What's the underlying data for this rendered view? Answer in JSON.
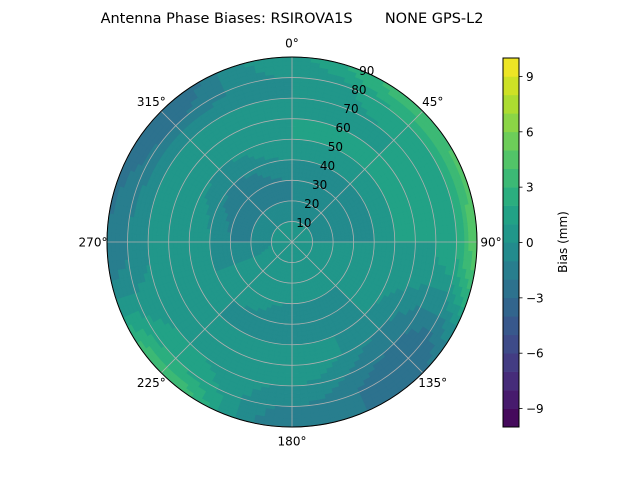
{
  "chart_data": {
    "type": "heatmap",
    "subtype": "polar-filled-contour",
    "title": "Antenna Phase Biases: RSIROVA1S       NONE GPS-L2",
    "azimuth_direction": "clockwise",
    "azimuth_zero": "top",
    "azimuth_ticks": [
      "0°",
      "45°",
      "90°",
      "135°",
      "180°",
      "225°",
      "270°",
      "315°"
    ],
    "radial_ticks": [
      "10",
      "20",
      "30",
      "40",
      "50",
      "60",
      "70",
      "80",
      "90"
    ],
    "radial_range": [
      0,
      90
    ],
    "grid": true,
    "azimuths": [
      0,
      45,
      90,
      135,
      180,
      225,
      270,
      315
    ],
    "radii": [
      0,
      10,
      20,
      30,
      40,
      50,
      60,
      70,
      80,
      90
    ],
    "values": [
      [
        0,
        0,
        -1,
        -1,
        0,
        1,
        1,
        0,
        0,
        1
      ],
      [
        0,
        0,
        -1,
        -1,
        0,
        1,
        1,
        1,
        2,
        4
      ],
      [
        0,
        0,
        0,
        0,
        0,
        1,
        1,
        1,
        2,
        5
      ],
      [
        0,
        0,
        0,
        0,
        0,
        0,
        -1,
        -2,
        -3,
        -2
      ],
      [
        0,
        1,
        0,
        0,
        -1,
        0,
        1,
        0,
        -1,
        -2
      ],
      [
        0,
        1,
        1,
        1,
        0,
        0,
        1,
        1,
        2,
        4
      ],
      [
        0,
        0,
        -1,
        -1,
        0,
        1,
        1,
        0,
        -1,
        -2
      ],
      [
        0,
        0,
        -1,
        -2,
        -1,
        0,
        1,
        0,
        -2,
        -3
      ]
    ],
    "colorbar": {
      "label": "Bias (mm)",
      "colormap": "viridis",
      "range": [
        -10,
        10
      ],
      "levels_step": 1,
      "ticks": [
        "−9",
        "−6",
        "−3",
        "0",
        "3",
        "6",
        "9"
      ],
      "tick_values": [
        -9,
        -6,
        -3,
        0,
        3,
        6,
        9
      ]
    }
  }
}
